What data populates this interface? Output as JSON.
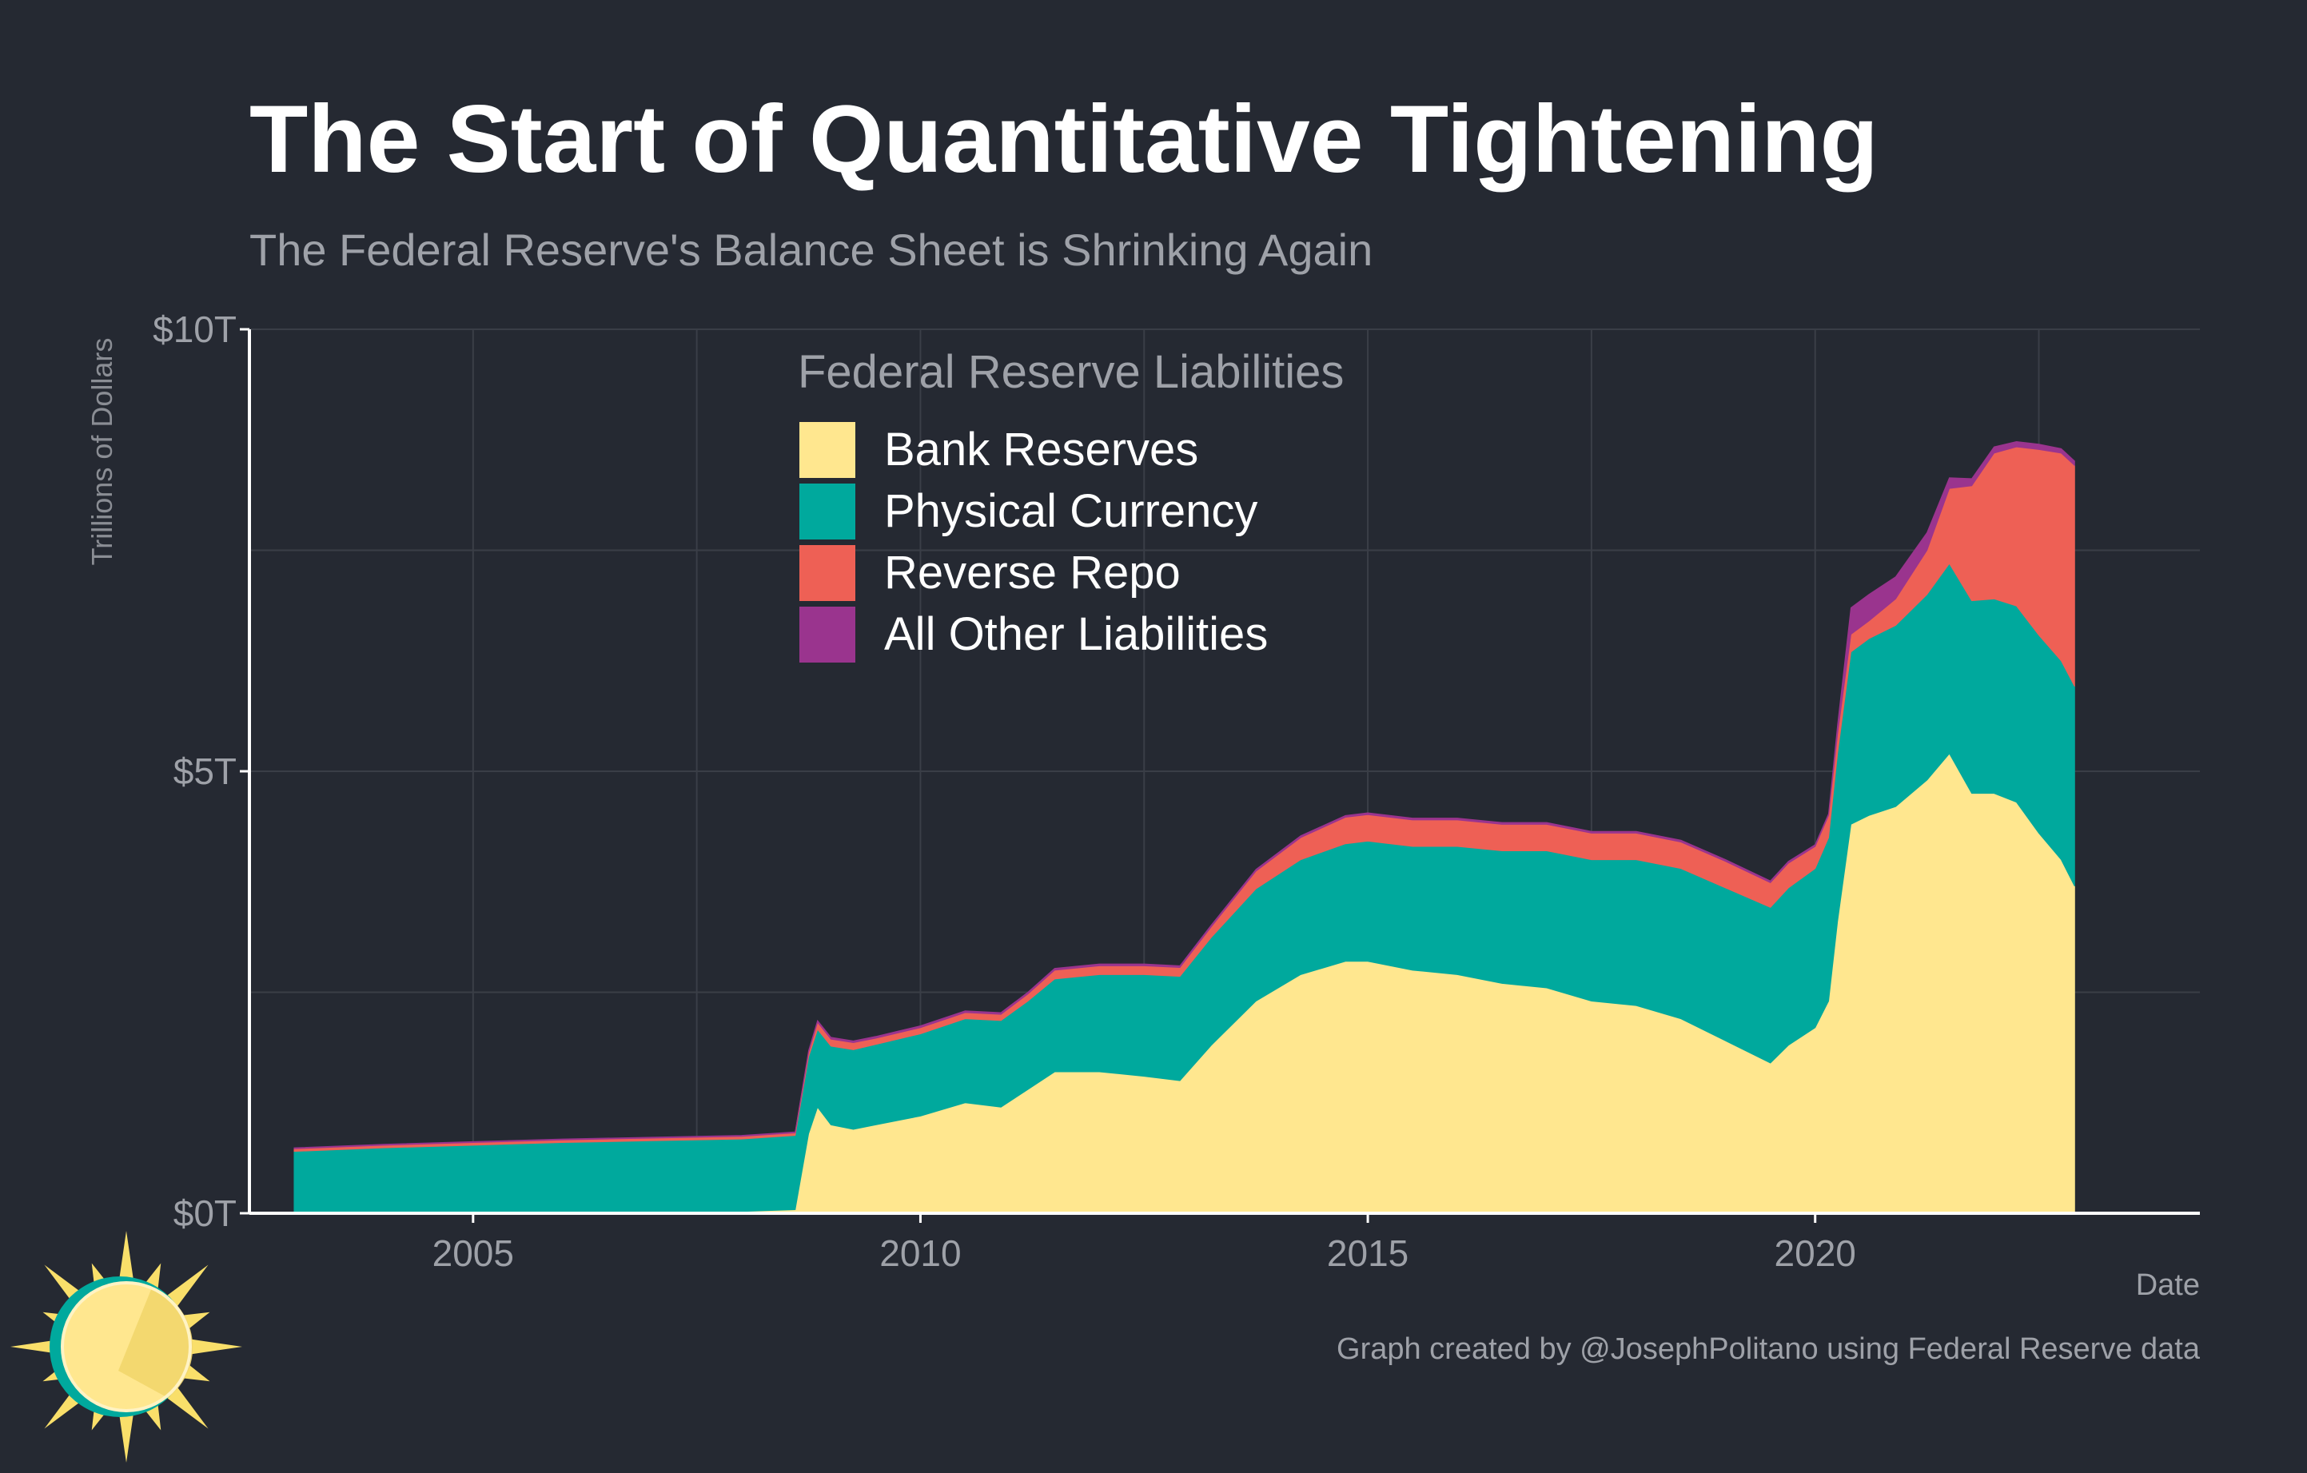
{
  "title": "The Start of Quantitative Tightening",
  "subtitle": "The Federal Reserve's Balance Sheet is Shrinking Again",
  "caption": "Graph created by @JosephPolitano using Federal Reserve data",
  "logo_icon": "sun-logo-icon",
  "colors": {
    "background": "#252932",
    "bank_reserves": "#FFE78F",
    "physical_currency": "#00A99D",
    "reverse_repo": "#EE6055",
    "all_other": "#9A348E",
    "grid": "#3A3E47",
    "axis": "#FFFFFF",
    "muted_text": "#9EA1A8"
  },
  "chart_data": {
    "type": "area",
    "stacked": true,
    "xlabel": "Date",
    "ylabel": "Trillions of Dollars",
    "xlim": [
      2002.5,
      2024.3
    ],
    "ylim": [
      0,
      10
    ],
    "x_ticks": [
      2005,
      2010,
      2015,
      2020
    ],
    "x_tick_labels": [
      "2005",
      "2010",
      "2015",
      "2020"
    ],
    "y_ticks": [
      0,
      5,
      10
    ],
    "y_tick_labels": [
      "$0T",
      "$5T",
      "$10T"
    ],
    "grid": true,
    "legend_title": "Federal Reserve Liabilities",
    "legend_position": "top-center",
    "x": [
      2003.0,
      2004.0,
      2005.0,
      2006.0,
      2007.0,
      2008.0,
      2008.6,
      2008.75,
      2008.85,
      2009.0,
      2009.25,
      2009.5,
      2009.75,
      2010.0,
      2010.5,
      2010.9,
      2011.2,
      2011.5,
      2012.0,
      2012.5,
      2012.9,
      2013.25,
      2013.75,
      2014.25,
      2014.75,
      2015.0,
      2015.5,
      2016.0,
      2016.5,
      2017.0,
      2017.5,
      2018.0,
      2018.5,
      2019.0,
      2019.5,
      2019.7,
      2020.0,
      2020.15,
      2020.25,
      2020.4,
      2020.6,
      2020.9,
      2021.25,
      2021.5,
      2021.75,
      2022.0,
      2022.25,
      2022.5,
      2022.75,
      2022.9
    ],
    "series": [
      {
        "name": "Bank Reserves",
        "values": [
          0.02,
          0.02,
          0.02,
          0.02,
          0.02,
          0.02,
          0.04,
          0.9,
          1.2,
          1.0,
          0.95,
          1.0,
          1.05,
          1.1,
          1.25,
          1.2,
          1.4,
          1.6,
          1.6,
          1.55,
          1.5,
          1.9,
          2.4,
          2.7,
          2.85,
          2.85,
          2.75,
          2.7,
          2.6,
          2.55,
          2.4,
          2.35,
          2.2,
          1.95,
          1.7,
          1.9,
          2.1,
          2.4,
          3.3,
          4.4,
          4.5,
          4.6,
          4.9,
          5.2,
          4.75,
          4.75,
          4.65,
          4.3,
          4.0,
          3.7
        ]
      },
      {
        "name": "Physical Currency",
        "values": [
          0.68,
          0.72,
          0.75,
          0.78,
          0.8,
          0.82,
          0.84,
          0.87,
          0.88,
          0.89,
          0.9,
          0.91,
          0.92,
          0.93,
          0.95,
          0.98,
          1.0,
          1.05,
          1.1,
          1.15,
          1.18,
          1.22,
          1.27,
          1.3,
          1.33,
          1.36,
          1.4,
          1.45,
          1.5,
          1.55,
          1.6,
          1.65,
          1.7,
          1.73,
          1.76,
          1.78,
          1.8,
          1.85,
          1.9,
          1.95,
          2.0,
          2.05,
          2.1,
          2.15,
          2.18,
          2.2,
          2.22,
          2.24,
          2.25,
          2.26
        ]
      },
      {
        "name": "Reverse Repo",
        "values": [
          0.03,
          0.03,
          0.03,
          0.03,
          0.03,
          0.03,
          0.03,
          0.05,
          0.08,
          0.08,
          0.08,
          0.07,
          0.07,
          0.07,
          0.07,
          0.07,
          0.08,
          0.1,
          0.1,
          0.1,
          0.1,
          0.12,
          0.2,
          0.25,
          0.3,
          0.3,
          0.3,
          0.3,
          0.3,
          0.3,
          0.3,
          0.3,
          0.3,
          0.3,
          0.28,
          0.28,
          0.25,
          0.25,
          0.22,
          0.2,
          0.2,
          0.3,
          0.5,
          0.85,
          1.3,
          1.65,
          1.8,
          2.1,
          2.35,
          2.5
        ]
      },
      {
        "name": "All Other Liabilities",
        "values": [
          0.01,
          0.01,
          0.01,
          0.01,
          0.01,
          0.01,
          0.01,
          0.02,
          0.02,
          0.02,
          0.02,
          0.02,
          0.02,
          0.02,
          0.02,
          0.02,
          0.02,
          0.02,
          0.02,
          0.02,
          0.02,
          0.02,
          0.02,
          0.02,
          0.02,
          0.02,
          0.02,
          0.02,
          0.02,
          0.02,
          0.02,
          0.02,
          0.02,
          0.02,
          0.02,
          0.02,
          0.02,
          0.02,
          0.1,
          0.3,
          0.3,
          0.25,
          0.2,
          0.12,
          0.08,
          0.07,
          0.06,
          0.06,
          0.05,
          0.05
        ]
      }
    ]
  }
}
